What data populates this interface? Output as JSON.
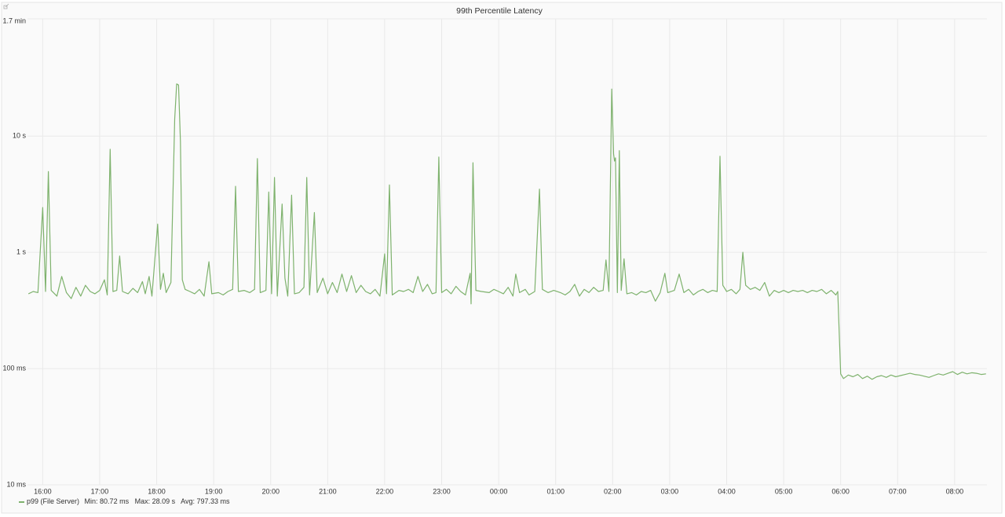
{
  "chart_data": {
    "type": "line",
    "title": "99th Percentile Latency",
    "x": [
      "15:45",
      "15:50",
      "15:55",
      "16:00",
      "16:03",
      "16:06",
      "16:09",
      "16:15",
      "16:20",
      "16:25",
      "16:30",
      "16:35",
      "16:40",
      "16:45",
      "16:50",
      "16:55",
      "17:00",
      "17:05",
      "17:08",
      "17:11",
      "17:14",
      "17:18",
      "17:21",
      "17:24",
      "17:30",
      "17:35",
      "17:40",
      "17:45",
      "17:48",
      "17:52",
      "17:55",
      "18:01",
      "18:04",
      "18:07",
      "18:10",
      "18:15",
      "18:19",
      "18:21",
      "18:23",
      "18:25",
      "18:27",
      "18:30",
      "18:35",
      "18:40",
      "18:45",
      "18:50",
      "18:55",
      "18:58",
      "19:05",
      "19:10",
      "19:15",
      "19:20",
      "19:23",
      "19:26",
      "19:32",
      "19:38",
      "19:43",
      "19:46",
      "19:49",
      "19:55",
      "19:58",
      "20:01",
      "20:04",
      "20:07",
      "20:12",
      "20:15",
      "20:18",
      "20:22",
      "20:25",
      "20:30",
      "20:35",
      "20:38",
      "20:41",
      "20:46",
      "20:49",
      "20:55",
      "21:00",
      "21:05",
      "21:10",
      "21:15",
      "21:20",
      "21:25",
      "21:30",
      "21:35",
      "21:40",
      "21:45",
      "21:50",
      "21:55",
      "22:00",
      "22:02",
      "22:05",
      "22:08",
      "22:15",
      "22:20",
      "22:25",
      "22:30",
      "22:35",
      "22:40",
      "22:45",
      "22:50",
      "22:54",
      "22:57",
      "23:00",
      "23:05",
      "23:10",
      "23:15",
      "23:20",
      "23:25",
      "23:30",
      "23:31",
      "23:33",
      "23:36",
      "23:42",
      "23:50",
      "23:55",
      "00:00",
      "00:05",
      "00:10",
      "00:15",
      "00:18",
      "00:22",
      "00:28",
      "00:32",
      "00:38",
      "00:43",
      "00:46",
      "00:52",
      "00:58",
      "01:05",
      "01:10",
      "01:15",
      "01:20",
      "01:25",
      "01:30",
      "01:35",
      "01:40",
      "01:45",
      "01:50",
      "01:53",
      "01:56",
      "01:59",
      "02:01",
      "02:02",
      "02:03",
      "02:05",
      "02:07",
      "02:09",
      "02:12",
      "02:15",
      "02:20",
      "02:25",
      "02:30",
      "02:35",
      "02:40",
      "02:45",
      "02:50",
      "02:55",
      "02:58",
      "03:05",
      "03:10",
      "03:15",
      "03:20",
      "03:25",
      "03:30",
      "03:35",
      "03:40",
      "03:45",
      "03:50",
      "03:53",
      "03:56",
      "04:00",
      "04:05",
      "04:10",
      "04:14",
      "04:17",
      "04:20",
      "04:25",
      "04:30",
      "04:35",
      "04:40",
      "04:45",
      "04:50",
      "04:55",
      "05:00",
      "05:05",
      "05:10",
      "05:15",
      "05:20",
      "05:25",
      "05:30",
      "05:35",
      "05:40",
      "05:45",
      "05:50",
      "05:55",
      "05:57",
      "06:00",
      "06:03",
      "06:08",
      "06:13",
      "06:18",
      "06:23",
      "06:28",
      "06:33",
      "06:38",
      "06:43",
      "06:48",
      "06:53",
      "06:58",
      "07:03",
      "07:08",
      "07:13",
      "07:18",
      "07:23",
      "07:28",
      "07:33",
      "07:38",
      "07:43",
      "07:48",
      "07:53",
      "07:58",
      "08:03",
      "08:08",
      "08:13",
      "08:18",
      "08:23",
      "08:28",
      "08:33"
    ],
    "series": [
      {
        "name": "p99 (File Server)",
        "color": "#7eb26d",
        "values": [
          0.44,
          0.46,
          0.45,
          2.43,
          0.46,
          4.96,
          0.47,
          0.42,
          0.62,
          0.45,
          0.4,
          0.5,
          0.42,
          0.52,
          0.46,
          0.44,
          0.47,
          0.58,
          0.43,
          7.7,
          0.46,
          0.47,
          0.93,
          0.46,
          0.44,
          0.49,
          0.45,
          0.56,
          0.44,
          0.62,
          0.42,
          1.75,
          0.48,
          0.66,
          0.45,
          0.55,
          14,
          28.09,
          27.5,
          9,
          0.58,
          0.48,
          0.46,
          0.44,
          0.48,
          0.42,
          0.83,
          0.44,
          0.45,
          0.43,
          0.46,
          0.48,
          3.7,
          0.46,
          0.47,
          0.45,
          0.48,
          6.4,
          0.45,
          0.47,
          3.3,
          0.44,
          4.4,
          0.42,
          2.6,
          0.6,
          0.42,
          3.1,
          0.44,
          0.45,
          0.5,
          4.4,
          0.43,
          2.2,
          0.45,
          0.6,
          0.44,
          0.55,
          0.45,
          0.65,
          0.46,
          0.63,
          0.45,
          0.52,
          0.46,
          0.44,
          0.48,
          0.42,
          0.97,
          0.44,
          3.8,
          0.43,
          0.47,
          0.46,
          0.48,
          0.45,
          0.62,
          0.46,
          0.53,
          0.44,
          0.45,
          6.6,
          0.45,
          0.48,
          0.44,
          0.51,
          0.46,
          0.43,
          0.66,
          0.36,
          5.9,
          0.47,
          0.46,
          0.45,
          0.48,
          0.46,
          0.44,
          0.5,
          0.42,
          0.65,
          0.45,
          0.48,
          0.43,
          0.46,
          3.5,
          0.48,
          0.45,
          0.47,
          0.45,
          0.43,
          0.46,
          0.53,
          0.42,
          0.48,
          0.45,
          0.5,
          0.46,
          0.47,
          0.86,
          0.46,
          25.4,
          7,
          6.1,
          6.5,
          0.45,
          7.5,
          0.47,
          0.88,
          0.44,
          0.45,
          0.43,
          0.46,
          0.45,
          0.47,
          0.38,
          0.45,
          0.66,
          0.45,
          0.47,
          0.65,
          0.45,
          0.48,
          0.43,
          0.46,
          0.48,
          0.45,
          0.47,
          0.46,
          6.7,
          0.52,
          0.46,
          0.48,
          0.44,
          0.48,
          1.0,
          0.52,
          0.48,
          0.5,
          0.47,
          0.55,
          0.42,
          0.47,
          0.45,
          0.47,
          0.45,
          0.47,
          0.46,
          0.47,
          0.45,
          0.47,
          0.46,
          0.48,
          0.44,
          0.47,
          0.43,
          0.46,
          0.09,
          0.082,
          0.088,
          0.085,
          0.089,
          0.082,
          0.086,
          0.08072,
          0.085,
          0.087,
          0.084,
          0.088,
          0.085,
          0.087,
          0.089,
          0.091,
          0.089,
          0.088,
          0.086,
          0.084,
          0.087,
          0.09,
          0.088,
          0.091,
          0.094,
          0.089,
          0.093,
          0.09,
          0.092,
          0.091,
          0.089,
          0.09
        ]
      }
    ],
    "legend_stats": [
      "Min: 80.72 ms",
      "Max: 28.09 s",
      "Avg: 797.33 ms"
    ],
    "log_scale": true,
    "grid": true,
    "xlim": [
      "15:44",
      "08:34"
    ],
    "xticks": [
      "16:00",
      "17:00",
      "18:00",
      "19:00",
      "20:00",
      "21:00",
      "22:00",
      "23:00",
      "00:00",
      "01:00",
      "02:00",
      "03:00",
      "04:00",
      "05:00",
      "06:00",
      "07:00",
      "08:00"
    ],
    "ylim": [
      0.01,
      102
    ],
    "yticks": [
      {
        "value": 0.01,
        "label": "10 ms"
      },
      {
        "value": 0.1,
        "label": "100 ms"
      },
      {
        "value": 1,
        "label": "1 s"
      },
      {
        "value": 10,
        "label": "10 s"
      },
      {
        "value": 102,
        "label": "1.7 min"
      }
    ]
  }
}
